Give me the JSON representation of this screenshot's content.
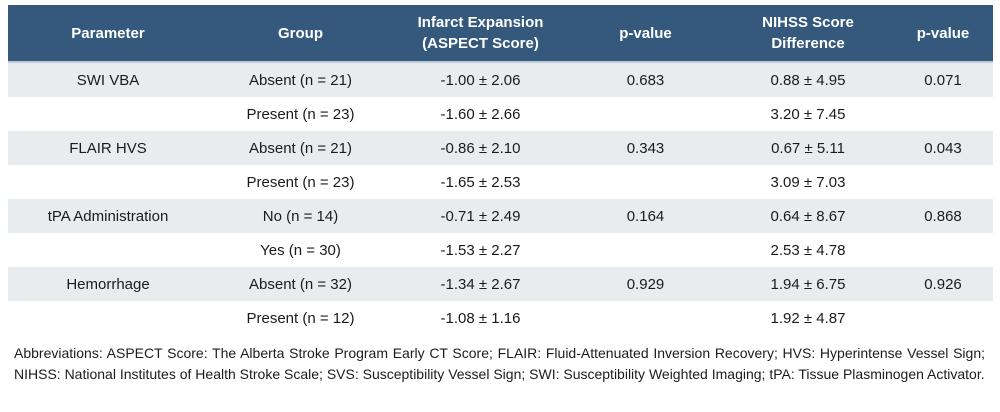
{
  "colors": {
    "header_bg": "#35597d",
    "header_text": "#ffffff",
    "row_shaded_bg": "#e9ecef",
    "row_plain_bg": "#ffffff",
    "body_text": "#1b1b1b",
    "header_separator": "#bfccd8"
  },
  "table": {
    "columns": [
      {
        "key": "parameter",
        "label": "Parameter"
      },
      {
        "key": "group",
        "label": "Group"
      },
      {
        "key": "infarct",
        "label": "Infarct Expansion (ASPECT Score)"
      },
      {
        "key": "p1",
        "label": "p-value"
      },
      {
        "key": "nihss",
        "label": "NIHSS Score Difference"
      },
      {
        "key": "p2",
        "label": "p-value"
      }
    ],
    "rows": [
      {
        "parameter": "SWI VBA",
        "group": "Absent (n = 21)",
        "infarct": "-1.00 ± 2.06",
        "p1": "0.683",
        "nihss": "0.88 ± 4.95",
        "p2": "0.071"
      },
      {
        "parameter": "",
        "group": "Present (n = 23)",
        "infarct": "-1.60 ± 2.66",
        "p1": "",
        "nihss": "3.20 ± 7.45",
        "p2": ""
      },
      {
        "parameter": "FLAIR HVS",
        "group": "Absent (n = 21)",
        "infarct": "-0.86 ± 2.10",
        "p1": "0.343",
        "nihss": "0.67 ± 5.11",
        "p2": "0.043"
      },
      {
        "parameter": "",
        "group": "Present (n = 23)",
        "infarct": "-1.65 ± 2.53",
        "p1": "",
        "nihss": "3.09 ± 7.03",
        "p2": ""
      },
      {
        "parameter": "tPA Administration",
        "group": "No (n = 14)",
        "infarct": "-0.71 ± 2.49",
        "p1": "0.164",
        "nihss": "0.64 ± 8.67",
        "p2": "0.868"
      },
      {
        "parameter": "",
        "group": "Yes (n = 30)",
        "infarct": "-1.53 ± 2.27",
        "p1": "",
        "nihss": "2.53 ± 4.78",
        "p2": ""
      },
      {
        "parameter": "Hemorrhage",
        "group": "Absent (n = 32)",
        "infarct": "-1.34 ± 2.67",
        "p1": "0.929",
        "nihss": "1.94 ± 6.75",
        "p2": "0.926"
      },
      {
        "parameter": "",
        "group": "Present (n = 12)",
        "infarct": "-1.08 ± 1.16",
        "p1": "",
        "nihss": "1.92 ± 4.87",
        "p2": ""
      }
    ]
  },
  "footnote": "Abbreviations: ASPECT Score: The Alberta Stroke Program Early CT Score; FLAIR: Fluid-Attenuated Inversion Recovery; HVS: Hyperintense Vessel Sign; NIHSS: National Institutes of Health Stroke Scale; SVS: Susceptibility Vessel Sign; SWI: Susceptibility Weighted Imaging; tPA: Tissue Plasminogen Activator."
}
